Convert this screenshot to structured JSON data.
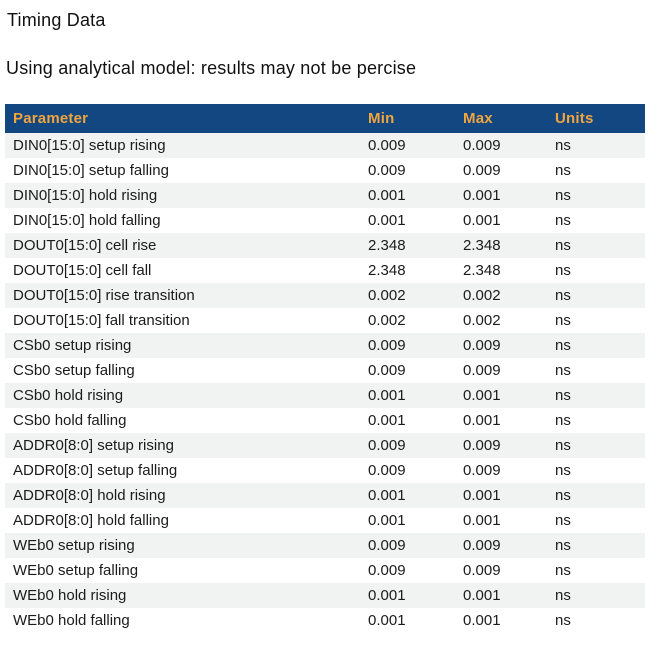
{
  "page": {
    "title": "Timing Data",
    "subtitle": "Using analytical model: results may not be percise"
  },
  "table": {
    "columns": [
      "Parameter",
      "Min",
      "Max",
      "Units"
    ],
    "rows": [
      {
        "parameter": "DIN0[15:0] setup rising",
        "min": "0.009",
        "max": "0.009",
        "units": "ns"
      },
      {
        "parameter": "DIN0[15:0] setup falling",
        "min": "0.009",
        "max": "0.009",
        "units": "ns"
      },
      {
        "parameter": "DIN0[15:0] hold rising",
        "min": "0.001",
        "max": "0.001",
        "units": "ns"
      },
      {
        "parameter": "DIN0[15:0] hold falling",
        "min": "0.001",
        "max": "0.001",
        "units": "ns"
      },
      {
        "parameter": "DOUT0[15:0] cell rise",
        "min": "2.348",
        "max": "2.348",
        "units": "ns"
      },
      {
        "parameter": "DOUT0[15:0] cell fall",
        "min": "2.348",
        "max": "2.348",
        "units": "ns"
      },
      {
        "parameter": "DOUT0[15:0] rise transition",
        "min": "0.002",
        "max": "0.002",
        "units": "ns"
      },
      {
        "parameter": "DOUT0[15:0] fall transition",
        "min": "0.002",
        "max": "0.002",
        "units": "ns"
      },
      {
        "parameter": "CSb0 setup rising",
        "min": "0.009",
        "max": "0.009",
        "units": "ns"
      },
      {
        "parameter": "CSb0 setup falling",
        "min": "0.009",
        "max": "0.009",
        "units": "ns"
      },
      {
        "parameter": "CSb0 hold rising",
        "min": "0.001",
        "max": "0.001",
        "units": "ns"
      },
      {
        "parameter": "CSb0 hold falling",
        "min": "0.001",
        "max": "0.001",
        "units": "ns"
      },
      {
        "parameter": "ADDR0[8:0] setup rising",
        "min": "0.009",
        "max": "0.009",
        "units": "ns"
      },
      {
        "parameter": "ADDR0[8:0] setup falling",
        "min": "0.009",
        "max": "0.009",
        "units": "ns"
      },
      {
        "parameter": "ADDR0[8:0] hold rising",
        "min": "0.001",
        "max": "0.001",
        "units": "ns"
      },
      {
        "parameter": "ADDR0[8:0] hold falling",
        "min": "0.001",
        "max": "0.001",
        "units": "ns"
      },
      {
        "parameter": "WEb0 setup rising",
        "min": "0.009",
        "max": "0.009",
        "units": "ns"
      },
      {
        "parameter": "WEb0 setup falling",
        "min": "0.009",
        "max": "0.009",
        "units": "ns"
      },
      {
        "parameter": "WEb0 hold rising",
        "min": "0.001",
        "max": "0.001",
        "units": "ns"
      },
      {
        "parameter": "WEb0 hold falling",
        "min": "0.001",
        "max": "0.001",
        "units": "ns"
      }
    ]
  },
  "colors": {
    "header_bg": "#134781",
    "header_text": "#f0a53e",
    "row_alt_bg": "#f1f2f2",
    "row_bg": "#ffffff",
    "body_text": "#1b1b1b"
  }
}
